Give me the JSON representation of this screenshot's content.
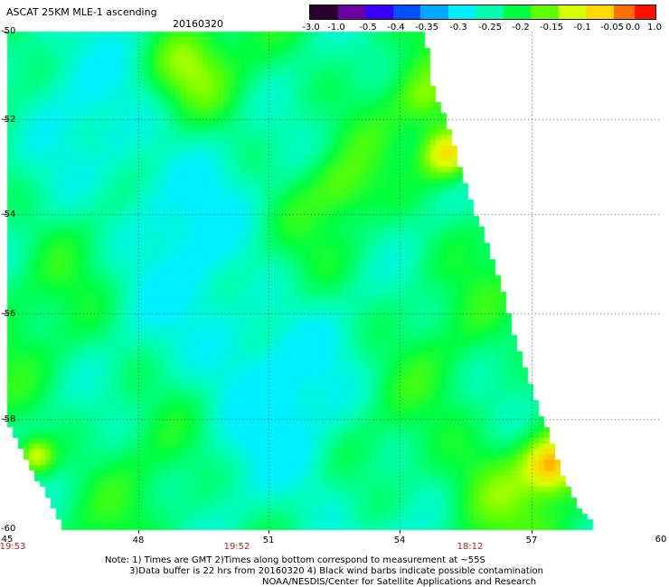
{
  "title": "ASCAT 25KM MLE-1 ascending",
  "date": "20160320",
  "colorbar": {
    "labels": [
      "-3.0",
      "-1.0",
      "-0.5",
      "-0.4",
      "-0.35",
      "-0.3",
      "-0.25",
      "-0.2",
      "-0.15",
      "-0.1",
      "-0.05",
      "0.0",
      "1.0"
    ],
    "colors": [
      "#2a0030",
      "#6a00a0",
      "#3a00ff",
      "#0050ff",
      "#00a8ff",
      "#00f0ff",
      "#00ffb0",
      "#00ff40",
      "#60ff00",
      "#d8ff00",
      "#ffd800",
      "#ff7000",
      "#ff1000"
    ]
  },
  "axes": {
    "lat_labels": [
      "-50",
      "-52",
      "-54",
      "-56",
      "-58",
      "-60"
    ],
    "lon_labels": [
      "45",
      "48",
      "51",
      "54",
      "57",
      "60"
    ],
    "time_labels": [
      "19:53",
      "19:52",
      "18:12"
    ]
  },
  "notes": [
    "Note: 1) Times are GMT 2)Times along bottom correspond to measurement at ~55S",
    "3)Data buffer is 22 hrs from 20160320 4) Black wind barbs indicate possible contamination",
    "NOAA/NESDIS/Center for Satellite Applications and Research"
  ]
}
